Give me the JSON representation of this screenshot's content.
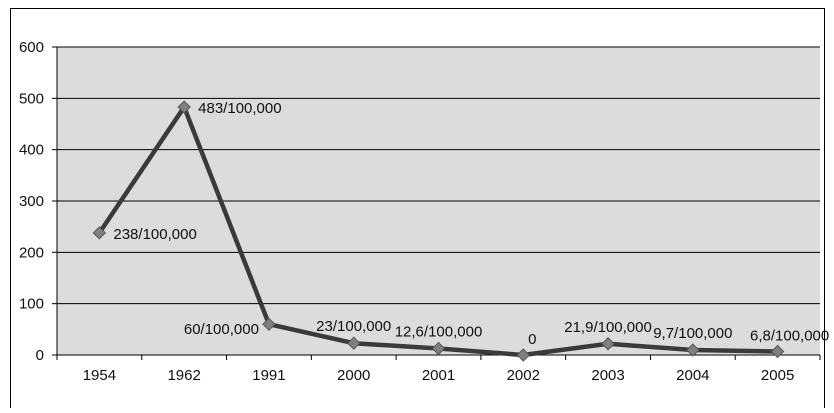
{
  "chart_data": {
    "type": "line",
    "title": "",
    "xlabel": "",
    "ylabel": "",
    "categories": [
      "1954",
      "1962",
      "1991",
      "2000",
      "2001",
      "2002",
      "2003",
      "2004",
      "2005"
    ],
    "series": [
      {
        "values": [
          238,
          483,
          60,
          23,
          12.6,
          0,
          21.9,
          9.7,
          6.8
        ],
        "labels": [
          "238/100,000",
          "483/100,000",
          "60/100,000",
          "23/100,000",
          "12,6/100,000",
          "0",
          "21,9/100,000",
          "9,7/100,000",
          "6,8/100,000"
        ]
      }
    ],
    "ylim": [
      0,
      600
    ],
    "yticks": [
      "0",
      "100",
      "200",
      "300",
      "400",
      "500",
      "600"
    ],
    "grid": true,
    "legend": "none",
    "colors": {
      "plot_background": "#dcdcdc",
      "line": "#3a3a3a",
      "marker": "#808080",
      "gridline": "#000000"
    }
  }
}
